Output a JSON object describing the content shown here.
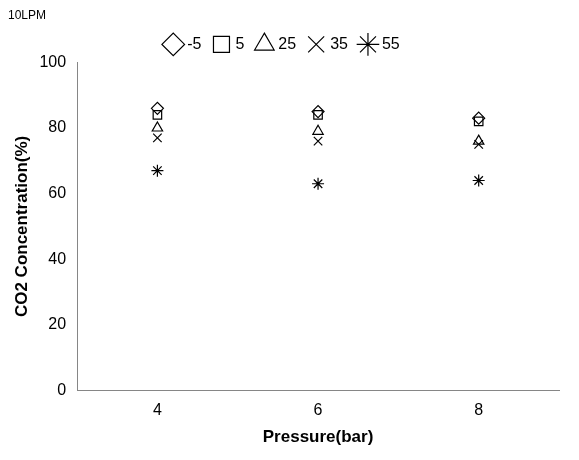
{
  "chart_data": {
    "type": "scatter",
    "title": "10LPM",
    "xlabel": "Pressure(bar)",
    "ylabel": "CO2 Concentration(%)",
    "categories": [
      "4",
      "6",
      "8"
    ],
    "series": [
      {
        "name": "-5",
        "color": "#000000",
        "marker": "diamond",
        "values": [
          86,
          85,
          83
        ]
      },
      {
        "name": "5",
        "color": "#000000",
        "marker": "square",
        "values": [
          84,
          84,
          82
        ]
      },
      {
        "name": "25",
        "color": "#000000",
        "marker": "triangle",
        "values": [
          80,
          79,
          76
        ]
      },
      {
        "name": "35",
        "color": "#000000",
        "marker": "x",
        "values": [
          77,
          76,
          75
        ]
      },
      {
        "name": "55",
        "color": "#000000",
        "marker": "star",
        "values": [
          67,
          63,
          64
        ]
      }
    ],
    "ylim": [
      0,
      100
    ],
    "yticks": [
      0,
      20,
      40,
      60,
      80,
      100
    ],
    "grid": false,
    "legend": "top"
  }
}
